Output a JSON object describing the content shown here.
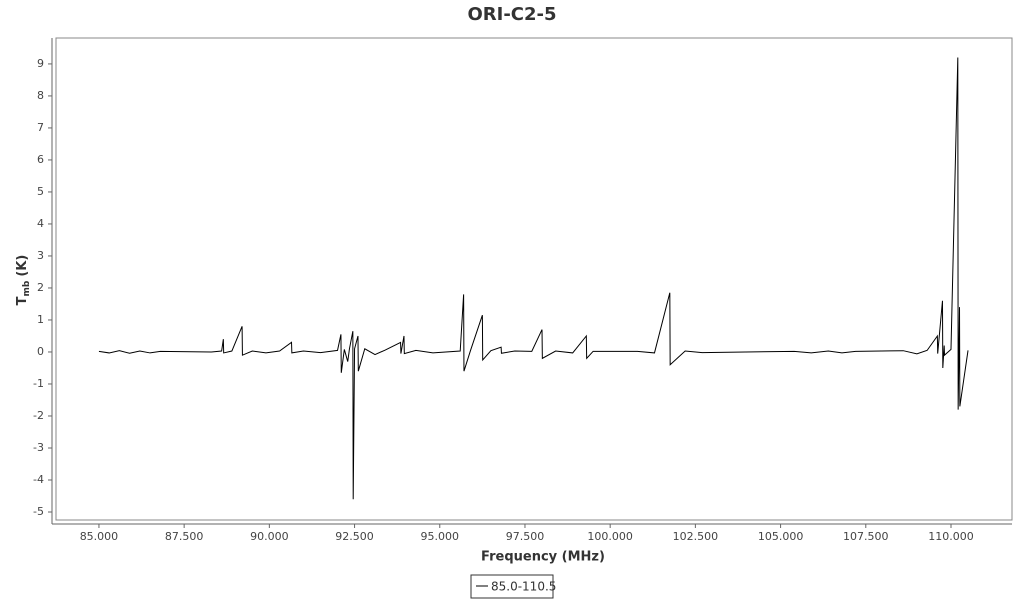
{
  "chart_data": {
    "type": "line",
    "title": "ORI-C2-5",
    "x_label": "Frequency (MHz)",
    "y_label": {
      "main": "T",
      "subscript": "mb",
      "rest": "(K)"
    },
    "xlim": [
      83.74,
      111.79
    ],
    "ylim": [
      -5.25,
      9.81
    ],
    "xticks": [
      {
        "value": 85,
        "label": "85.000"
      },
      {
        "value": 87.5,
        "label": "87.500"
      },
      {
        "value": 90,
        "label": "90.000"
      },
      {
        "value": 92.5,
        "label": "92.500"
      },
      {
        "value": 95,
        "label": "95.000"
      },
      {
        "value": 97.5,
        "label": "97.500"
      },
      {
        "value": 100,
        "label": "100.000"
      },
      {
        "value": 102.5,
        "label": "102.500"
      },
      {
        "value": 105,
        "label": "105.000"
      },
      {
        "value": 107.5,
        "label": "107.500"
      },
      {
        "value": 110,
        "label": "110.000"
      }
    ],
    "yticks": [
      -5,
      -4,
      -3,
      -2,
      -1,
      0,
      1,
      2,
      3,
      4,
      5,
      6,
      7,
      8,
      9
    ],
    "grid": false,
    "legend": "bottom",
    "series": [
      {
        "name": "85.0-110.5",
        "color": "#000000",
        "x": [
          85.0,
          85.3,
          85.6,
          85.9,
          86.2,
          86.5,
          86.8,
          88.3,
          88.6,
          88.65,
          88.66,
          88.9,
          89.2,
          89.21,
          89.5,
          89.9,
          90.3,
          90.65,
          90.66,
          91.0,
          91.5,
          92.0,
          92.1,
          92.11,
          92.2,
          92.3,
          92.35,
          92.45,
          92.46,
          92.5,
          92.6,
          92.61,
          92.8,
          93.1,
          93.4,
          93.85,
          93.86,
          93.95,
          93.96,
          94.3,
          94.8,
          95.6,
          95.7,
          95.71,
          95.9,
          96.25,
          96.26,
          96.5,
          96.8,
          96.81,
          97.2,
          97.7,
          98.0,
          98.01,
          98.4,
          98.9,
          99.3,
          99.31,
          99.5,
          100.8,
          101.3,
          101.75,
          101.76,
          102.2,
          102.7,
          105.4,
          105.9,
          106.4,
          106.8,
          107.2,
          108.6,
          109.0,
          109.3,
          109.6,
          109.61,
          109.75,
          109.76,
          109.8,
          109.81,
          110.0,
          110.2,
          110.21,
          110.25,
          110.26,
          110.5
        ],
        "values": [
          0.02,
          -0.03,
          0.04,
          -0.04,
          0.03,
          -0.03,
          0.02,
          0,
          0.03,
          0.4,
          -0.03,
          0.03,
          0.8,
          -0.1,
          0.03,
          -0.03,
          0.03,
          0.3,
          -0.03,
          0.03,
          -0.02,
          0.05,
          0.55,
          -0.65,
          0.08,
          -0.3,
          0.1,
          0.65,
          -4.6,
          0.1,
          0.5,
          -0.6,
          0.1,
          -0.08,
          0.06,
          0.3,
          -0.05,
          0.5,
          -0.05,
          0.05,
          -0.03,
          0.03,
          1.8,
          -0.6,
          0.04,
          1.15,
          -0.25,
          0.04,
          0.15,
          -0.04,
          0.03,
          0.02,
          0.7,
          -0.2,
          0.03,
          -0.03,
          0.5,
          -0.2,
          0.02,
          0.02,
          -0.03,
          1.85,
          -0.4,
          0.03,
          -0.02,
          0.02,
          -0.03,
          0.03,
          -0.03,
          0.02,
          0.04,
          -0.06,
          0.05,
          0.5,
          -0.05,
          1.6,
          -0.5,
          0.2,
          -0.1,
          0.08,
          9.2,
          -1.8,
          1.4,
          -1.7,
          0.05
        ]
      }
    ]
  }
}
